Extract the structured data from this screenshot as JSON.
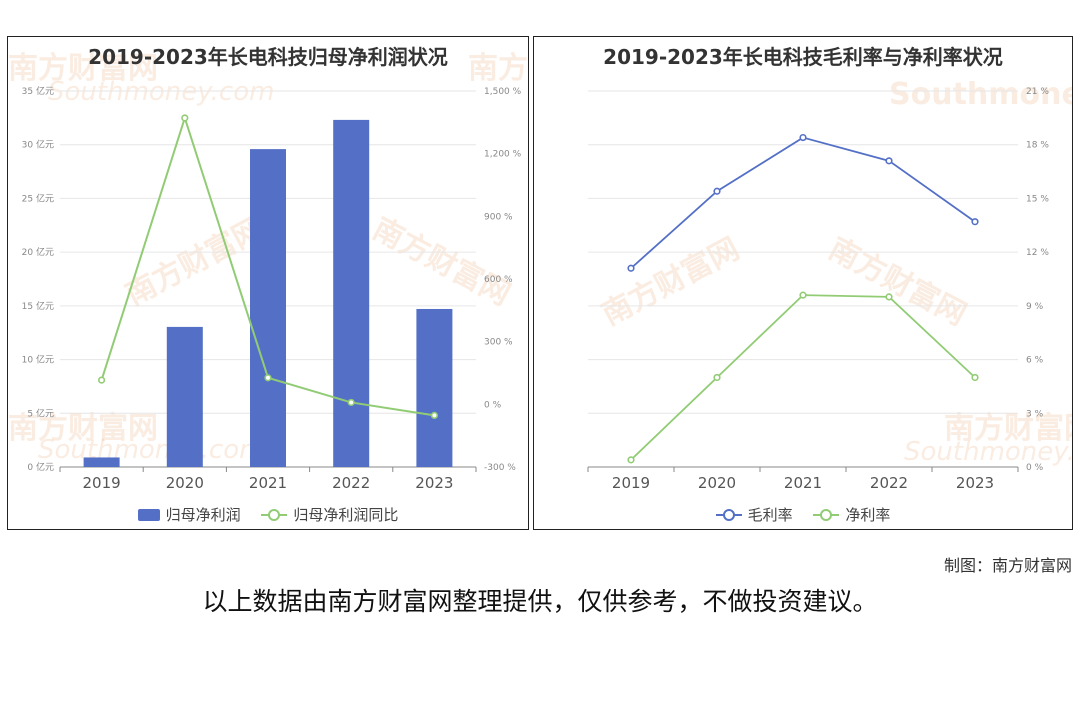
{
  "charts": {
    "left": {
      "title": "2019-2023年长电科技归母净利润状况",
      "legend": {
        "bar": "归母净利润",
        "line": "归母净利润同比"
      }
    },
    "right": {
      "title": "2019-2023年长电科技毛利率与净利率状况",
      "legend": {
        "a": "毛利率",
        "b": "净利率"
      }
    }
  },
  "watermark": {
    "cn": "南方财富网",
    "en": "Southmoney.com"
  },
  "colors": {
    "bar": "#5470c6",
    "green": "#91cc75",
    "blue": "#5470c6",
    "grid": "#e6e6e6"
  },
  "credit": "制图：南方财富网",
  "disclaimer": "以上数据由南方财富网整理提供，仅供参考，不做投资建议。",
  "chart_data": [
    {
      "type": "bar",
      "title": "2019-2023年长电科技归母净利润状况",
      "categories": [
        "2019",
        "2020",
        "2021",
        "2022",
        "2023"
      ],
      "series": [
        {
          "name": "归母净利润",
          "type": "bar",
          "axis": "left",
          "values": [
            0.89,
            13.04,
            29.59,
            32.31,
            14.71
          ]
        },
        {
          "name": "归母净利润同比",
          "type": "line",
          "axis": "right",
          "values": [
            116,
            1371,
            127,
            9,
            -53
          ]
        }
      ],
      "left_axis": {
        "ticks": [
          0,
          5,
          10,
          15,
          20,
          25,
          30,
          35
        ],
        "labels": [
          "0 亿元",
          "5 亿元",
          "10 亿元",
          "15 亿元",
          "20 亿元",
          "25 亿元",
          "30 亿元",
          "35 亿元"
        ],
        "ylim": [
          0,
          35
        ]
      },
      "right_axis": {
        "ticks": [
          -300,
          0,
          300,
          600,
          900,
          1200,
          1500
        ],
        "labels": [
          "-300 %",
          "0 %",
          "300 %",
          "600 %",
          "900 %",
          "1,200 %",
          "1,500 %"
        ],
        "ylim": [
          -300,
          1500
        ]
      },
      "grid": true,
      "legend": "bottom"
    },
    {
      "type": "line",
      "title": "2019-2023年长电科技毛利率与净利率状况",
      "categories": [
        "2019",
        "2020",
        "2021",
        "2022",
        "2023"
      ],
      "series": [
        {
          "name": "毛利率",
          "values": [
            11.1,
            15.4,
            18.4,
            17.1,
            13.7
          ]
        },
        {
          "name": "净利率",
          "values": [
            0.4,
            5.0,
            9.6,
            9.5,
            5.0
          ]
        }
      ],
      "right_axis": {
        "ticks": [
          0,
          3,
          6,
          9,
          12,
          15,
          18,
          21
        ],
        "labels": [
          "0 %",
          "3 %",
          "6 %",
          "9 %",
          "12 %",
          "15 %",
          "18 %",
          "21 %"
        ],
        "ylim": [
          0,
          21
        ]
      },
      "grid": true,
      "legend": "bottom"
    }
  ]
}
